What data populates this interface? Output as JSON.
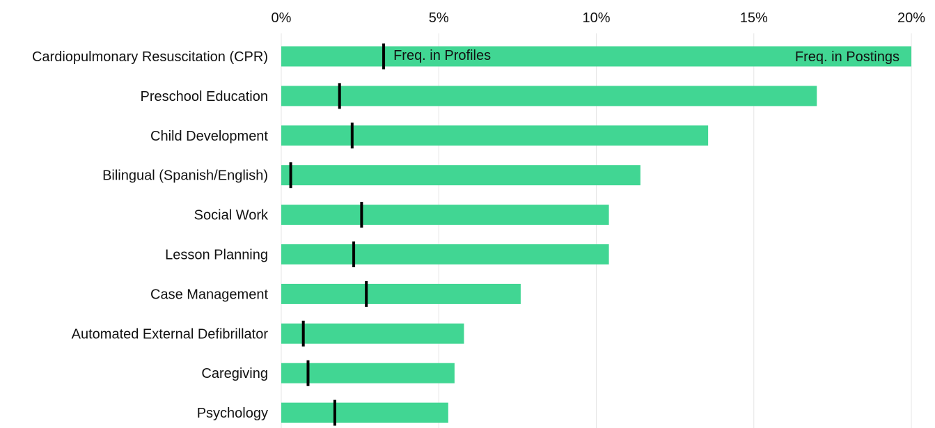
{
  "chart_data": {
    "type": "bar",
    "orientation": "horizontal",
    "xlim": [
      0,
      20
    ],
    "x_ticks": [
      0,
      5,
      10,
      15,
      20
    ],
    "x_tick_labels": [
      "0%",
      "5%",
      "10%",
      "15%",
      "20%"
    ],
    "grid": true,
    "categories": [
      "Cardiopulmonary Resuscitation (CPR)",
      "Preschool Education",
      "Child Development",
      "Bilingual (Spanish/English)",
      "Social Work",
      "Lesson Planning",
      "Case Management",
      "Automated External Defibrillator",
      "Caregiving",
      "Psychology"
    ],
    "series": [
      {
        "name": "Freq. in Postings",
        "mark": "bar",
        "color": "#41d693",
        "values": [
          20.0,
          17.0,
          13.55,
          11.4,
          10.4,
          10.4,
          7.6,
          5.8,
          5.5,
          5.3
        ]
      },
      {
        "name": "Freq. in Profiles",
        "mark": "tick",
        "color": "#000000",
        "values": [
          3.25,
          1.85,
          2.25,
          0.3,
          2.55,
          2.3,
          2.7,
          0.7,
          0.85,
          1.7
        ]
      }
    ],
    "annotations": {
      "profiles_label": "Freq. in Profiles",
      "postings_label": "Freq. in Postings"
    }
  }
}
